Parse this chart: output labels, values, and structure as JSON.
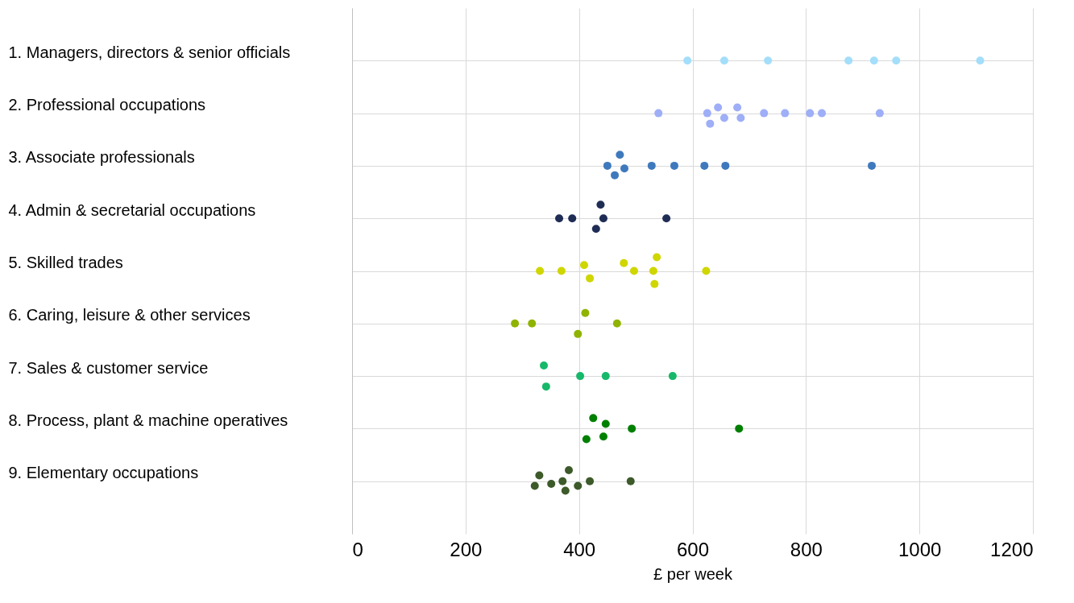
{
  "chart_data": {
    "type": "scatter",
    "xlabel": "£ per week",
    "xlim": [
      0,
      1200
    ],
    "xticks": [
      0,
      200,
      400,
      600,
      800,
      1000,
      1200
    ],
    "ylim": [
      10,
      0
    ],
    "yticks": [
      {
        "value": 1,
        "label": "1. Managers, directors & senior officials"
      },
      {
        "value": 2,
        "label": "2. Professional occupations"
      },
      {
        "value": 3,
        "label": "3. Associate professionals"
      },
      {
        "value": 4,
        "label": "4. Admin & secretarial occupations"
      },
      {
        "value": 5,
        "label": "5. Skilled trades"
      },
      {
        "value": 6,
        "label": "6. Caring, leisure & other services"
      },
      {
        "value": 7,
        "label": "7. Sales & customer  service"
      },
      {
        "value": 8,
        "label": "8. Process, plant & machine operatives"
      },
      {
        "value": 9,
        "label": "9. Elementary occupations"
      }
    ],
    "grid": true,
    "marker": "circle",
    "series": [
      {
        "color": "#a3defa",
        "x": [
          591,
          656,
          733,
          875,
          920,
          959,
          1107
        ],
        "values": [
          1,
          1,
          1,
          1,
          1,
          1,
          1
        ]
      },
      {
        "color": "#9eaef7",
        "x": [
          540,
          626,
          645,
          631,
          656,
          679,
          685,
          726,
          763,
          807,
          828,
          930
        ],
        "values": [
          2,
          2,
          1.89,
          2.2,
          2.09,
          1.89,
          2.09,
          2,
          2,
          2,
          2,
          2
        ]
      },
      {
        "color": "#3f79bd",
        "x": [
          450,
          472,
          480,
          463,
          528,
          568,
          621,
          658,
          916
        ],
        "values": [
          3,
          2.79,
          3.05,
          3.18,
          3,
          3,
          3,
          3,
          3
        ]
      },
      {
        "color": "#1f2d55",
        "x": [
          365,
          388,
          438,
          443,
          430,
          554
        ],
        "values": [
          4,
          4,
          3.74,
          4,
          4.2,
          4
        ]
      },
      {
        "color": "#cfd600",
        "x": [
          331,
          369,
          409,
          419,
          479,
          497,
          537,
          531,
          533,
          624
        ],
        "values": [
          5,
          5,
          4.89,
          5.14,
          4.85,
          5,
          4.74,
          5,
          5.25,
          5
        ]
      },
      {
        "color": "#8fb300",
        "x": [
          287,
          317,
          411,
          398,
          467
        ],
        "values": [
          6,
          6,
          5.8,
          6.2,
          6
        ]
      },
      {
        "color": "#17b86a",
        "x": [
          338,
          342,
          402,
          447,
          565
        ],
        "values": [
          6.8,
          7.2,
          7,
          7,
          7
        ]
      },
      {
        "color": "#008000",
        "x": [
          425,
          447,
          413,
          443,
          493,
          682
        ],
        "values": [
          7.8,
          7.91,
          8.2,
          8.15,
          8,
          8
        ]
      },
      {
        "color": "#3d5a2a",
        "x": [
          330,
          322,
          351,
          371,
          382,
          376,
          398,
          419,
          491
        ],
        "values": [
          8.89,
          9.09,
          9.05,
          9,
          8.79,
          9.18,
          9.09,
          9,
          9
        ]
      }
    ]
  }
}
